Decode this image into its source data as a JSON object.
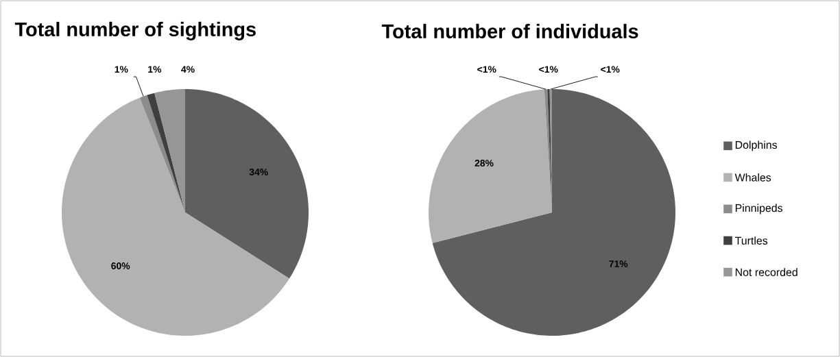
{
  "chart_data": [
    {
      "type": "pie",
      "title": "Total number of sightings",
      "categories": [
        null,
        null,
        null,
        null,
        null
      ],
      "values": [
        34,
        60,
        1,
        1,
        4
      ],
      "value_labels": [
        "34%",
        "60%",
        "1%",
        "1%",
        "4%"
      ],
      "colors": [
        "#5f5f5f",
        "#b2b2b2",
        "#8c8c8c",
        "#3f3f3f",
        "#969696"
      ],
      "legend": false
    },
    {
      "type": "pie",
      "title": "Total number of individuals",
      "categories": [
        "Dolphins",
        "Whales",
        "Pinnipeds",
        "Turtles",
        "Not recorded"
      ],
      "values": [
        71,
        28,
        0.4,
        0.3,
        0.3
      ],
      "value_labels": [
        "71%",
        "28%",
        "<1%",
        "<1%",
        "<1%"
      ],
      "colors": [
        "#5f5f5f",
        "#b2b2b2",
        "#8c8c8c",
        "#3f3f3f",
        "#969696"
      ],
      "legend": "right"
    }
  ]
}
